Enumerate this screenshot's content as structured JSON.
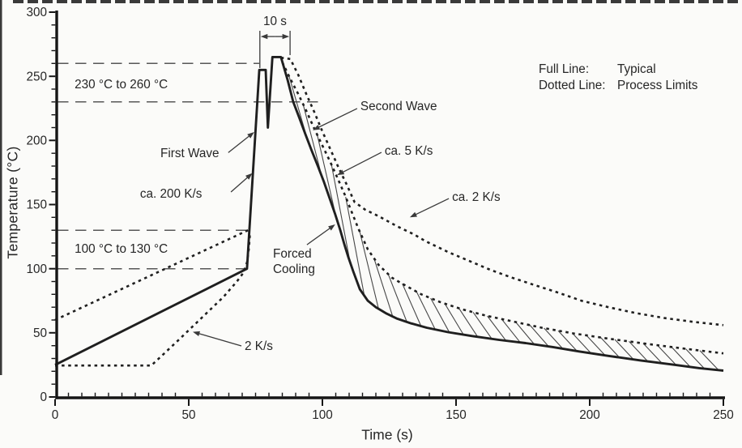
{
  "chart_data": {
    "type": "line",
    "title": "",
    "xlabel": "Time (s)",
    "ylabel": "Temperature (°C)",
    "xlim": [
      0,
      250
    ],
    "ylim": [
      0,
      300
    ],
    "x_major_ticks": [
      0,
      50,
      100,
      150,
      200,
      250
    ],
    "x_minor_step": 5,
    "y_major_ticks": [
      0,
      50,
      100,
      150,
      200,
      250,
      300
    ],
    "y_minor_step": 10,
    "grid": false,
    "colors": {
      "line": "#1f1f1f",
      "annotation": "#3a3a3a",
      "reference": "#575757",
      "text": "#262626",
      "background": "#fbfbf9"
    },
    "legend": {
      "position": "top-right",
      "rows": [
        {
          "key": "Full Line:",
          "value": "Typical"
        },
        {
          "key": "Dotted Line:",
          "value": "Process Limits"
        }
      ]
    },
    "series": [
      {
        "name": "typical",
        "label": "Typical (full line)",
        "line": "solid",
        "points": [
          [
            0,
            25
          ],
          [
            71.8,
            100
          ],
          [
            76.4,
            255
          ],
          [
            78.8,
            255
          ],
          [
            79.6,
            210
          ],
          [
            81.3,
            265
          ],
          [
            84.5,
            265
          ],
          [
            87,
            247
          ],
          [
            89.1,
            230
          ],
          [
            91.3,
            218
          ],
          [
            93.6,
            205
          ],
          [
            96,
            192
          ],
          [
            98.3,
            180
          ],
          [
            100.5,
            168
          ],
          [
            102.7,
            155
          ],
          [
            104.7,
            143
          ],
          [
            106.7,
            130
          ],
          [
            108.2,
            119
          ],
          [
            109.7,
            109
          ],
          [
            111.5,
            98
          ],
          [
            114,
            84
          ],
          [
            117,
            75
          ],
          [
            120,
            70
          ],
          [
            124,
            65
          ],
          [
            128,
            61
          ],
          [
            133,
            57.5
          ],
          [
            139,
            54
          ],
          [
            147,
            50.5
          ],
          [
            156,
            47.5
          ],
          [
            166,
            44.5
          ],
          [
            176,
            42
          ],
          [
            186,
            39
          ],
          [
            196,
            35.5
          ],
          [
            207,
            32
          ],
          [
            219,
            28.5
          ],
          [
            232,
            25
          ],
          [
            241,
            22.5
          ],
          [
            250,
            20.5
          ]
        ]
      },
      {
        "name": "limit-preheat-lower",
        "label": "Process limit, lower preheat (2 K/s)",
        "line": "dotted",
        "points": [
          [
            0,
            24.5
          ],
          [
            36,
            24.5
          ],
          [
            46,
            44
          ],
          [
            55,
            62
          ],
          [
            63,
            78
          ],
          [
            68,
            90
          ],
          [
            70.5,
            97
          ],
          [
            71.8,
            105
          ],
          [
            72.5,
            116
          ],
          [
            72.9,
            128
          ]
        ]
      },
      {
        "name": "limit-preheat-upper",
        "label": "Process limit, upper preheat",
        "line": "dotted",
        "points": [
          [
            0,
            60
          ],
          [
            73.2,
            131
          ]
        ]
      },
      {
        "name": "limit-cooling-5ks",
        "label": "Process limit, fast cooling (ca. 5 K/s)",
        "line": "dotted",
        "points": [
          [
            85,
            261
          ],
          [
            88,
            248
          ],
          [
            91,
            236
          ],
          [
            94,
            223
          ],
          [
            97,
            209
          ],
          [
            100,
            196
          ],
          [
            103,
            183
          ],
          [
            106,
            169
          ],
          [
            108.5,
            157
          ],
          [
            111,
            144
          ],
          [
            113.5,
            131
          ],
          [
            117,
            115
          ],
          [
            121,
            103
          ],
          [
            126,
            93
          ],
          [
            131,
            87
          ],
          [
            137,
            80
          ],
          [
            144,
            74
          ],
          [
            152,
            68.5
          ],
          [
            161,
            63.5
          ],
          [
            171,
            59
          ],
          [
            182,
            54
          ],
          [
            194,
            49.5
          ],
          [
            207,
            45.5
          ],
          [
            221,
            41.5
          ],
          [
            236,
            37.5
          ],
          [
            250,
            34
          ]
        ]
      },
      {
        "name": "limit-cooling-2ks",
        "label": "Process limit, slow cooling (ca. 2 K/s)",
        "line": "dotted",
        "points": [
          [
            84.5,
            264.5
          ],
          [
            88,
            263.5
          ],
          [
            91,
            251
          ],
          [
            94,
            236
          ],
          [
            97,
            222
          ],
          [
            100,
            207
          ],
          [
            103,
            193
          ],
          [
            106,
            179
          ],
          [
            109,
            166
          ],
          [
            112,
            152
          ],
          [
            116,
            146
          ],
          [
            121,
            141
          ],
          [
            128,
            133
          ],
          [
            134,
            127
          ],
          [
            139,
            121
          ],
          [
            147,
            113
          ],
          [
            155,
            106
          ],
          [
            163,
            99
          ],
          [
            171,
            93
          ],
          [
            179,
            87.5
          ],
          [
            188,
            81.5
          ],
          [
            197,
            75
          ],
          [
            207,
            70
          ],
          [
            217,
            65.5
          ],
          [
            228,
            61.5
          ],
          [
            239,
            58.5
          ],
          [
            250,
            56
          ]
        ]
      }
    ],
    "reference_lines": [
      {
        "temp": 260,
        "t_end": 76.4
      },
      {
        "temp": 230,
        "t_end": 98.5
      },
      {
        "temp": 130,
        "t_end": 72.4
      },
      {
        "temp": 100,
        "t_end": 71.8
      }
    ],
    "span_marker": {
      "label": "10 s",
      "t1": 76.6,
      "t2": 87.9,
      "top_T": 285.5,
      "arrow_T": 281,
      "left_end_T": 256.5,
      "right_end_T": 266.5,
      "label_T": 289.9
    },
    "annotations": [
      {
        "id": "reflow-window",
        "text": "230 °C to 260 °C",
        "at": [
          7.3,
          240.6
        ],
        "anchor": "start"
      },
      {
        "id": "preheat-window",
        "text": "100 °C to 130 °C",
        "at": [
          7.3,
          112.4
        ],
        "anchor": "start"
      },
      {
        "id": "first-wave",
        "text": "First Wave",
        "at": [
          39.4,
          187.0
        ],
        "anchor": "start",
        "from": [
          64.8,
          190.5
        ],
        "to": [
          74.5,
          206.5
        ]
      },
      {
        "id": "ramp-rate",
        "text": "ca. 200 K/s",
        "at": [
          31.8,
          155.4
        ],
        "anchor": "start",
        "from": [
          65.8,
          159.8
        ],
        "to": [
          73.8,
          174.5
        ]
      },
      {
        "id": "second-wave",
        "text": "Second Wave",
        "at": [
          114.2,
          223.6
        ],
        "anchor": "start",
        "from": [
          113.0,
          224.9
        ],
        "to": [
          96.4,
          208.0
        ]
      },
      {
        "id": "cool-5ks",
        "text": "ca. 5 K/s",
        "at": [
          123.3,
          188.8
        ],
        "anchor": "start",
        "from": [
          122.1,
          190.7
        ],
        "to": [
          105.5,
          173.0
        ]
      },
      {
        "id": "cool-2ks",
        "text": "ca. 2 K/s",
        "at": [
          148.5,
          152.8
        ],
        "anchor": "start",
        "from": [
          147.3,
          154.7
        ],
        "to": [
          132.7,
          140.0
        ]
      },
      {
        "id": "forced-cooling",
        "text": "Forced\nCooling",
        "at": [
          81.5,
          108.6
        ],
        "anchor": "start",
        "from": [
          94.2,
          118.7
        ],
        "to": [
          104.8,
          134.5
        ]
      },
      {
        "id": "preheat-2ks",
        "text": "2 K/s",
        "at": [
          70.9,
          36.6
        ],
        "anchor": "start",
        "from": [
          69.7,
          39.8
        ],
        "to": [
          51.5,
          50.8
        ]
      }
    ],
    "hatch": {
      "between": [
        "limit-cooling-5ks",
        "typical"
      ],
      "t_start": 87.5,
      "t_end": 243,
      "step": 5.3,
      "skew": 7
    }
  }
}
